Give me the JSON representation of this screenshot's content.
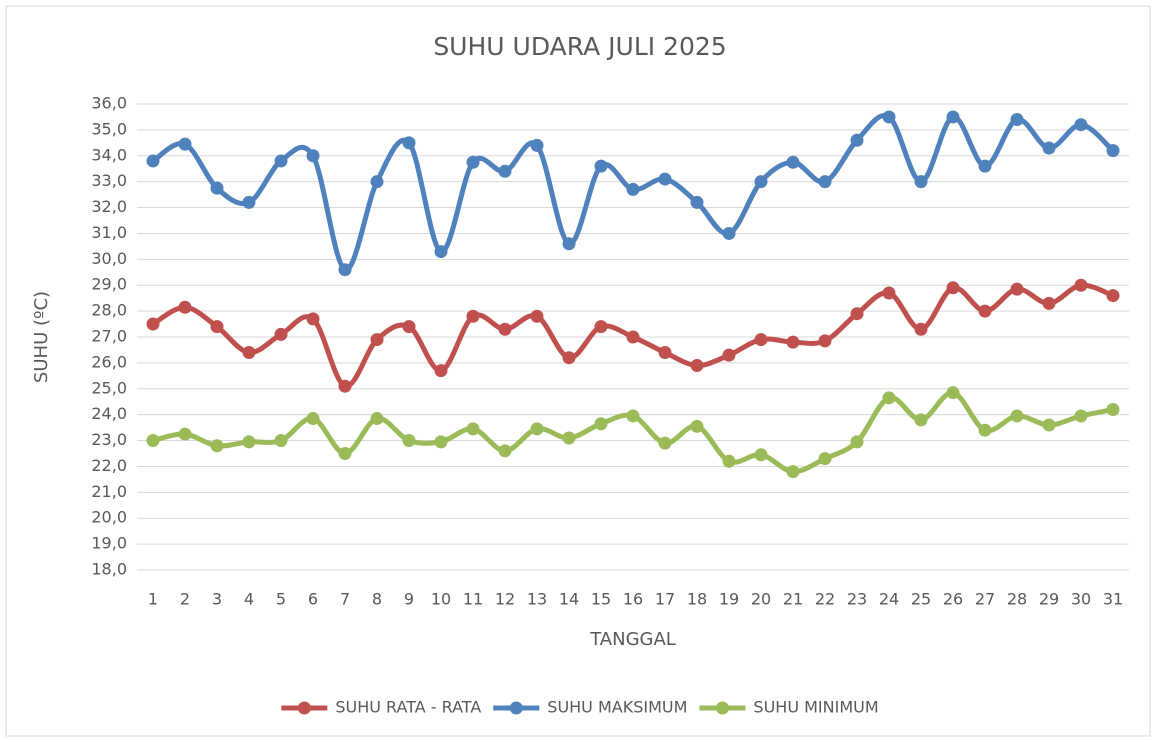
{
  "chart_data": {
    "type": "line",
    "title": "SUHU UDARA JULI 2025",
    "x_label": "TANGGAL",
    "y_label": "SUHU (ºC)",
    "categories": [
      "1",
      "2",
      "3",
      "4",
      "5",
      "6",
      "7",
      "8",
      "9",
      "10",
      "11",
      "12",
      "13",
      "14",
      "15",
      "16",
      "17",
      "18",
      "19",
      "20",
      "21",
      "22",
      "23",
      "24",
      "25",
      "26",
      "27",
      "28",
      "29",
      "30",
      "31"
    ],
    "series": [
      {
        "name": "SUHU RATA - RATA",
        "color": "#c0504d",
        "values": [
          27.5,
          28.15,
          27.4,
          26.4,
          27.1,
          27.7,
          25.1,
          26.9,
          27.4,
          25.7,
          27.8,
          27.3,
          27.8,
          26.2,
          27.4,
          27.0,
          26.4,
          25.9,
          26.3,
          26.9,
          26.8,
          26.85,
          27.9,
          28.7,
          27.3,
          28.9,
          28.0,
          28.85,
          28.3,
          29.0,
          28.6
        ]
      },
      {
        "name": "SUHU MAKSIMUM",
        "color": "#4f81bd",
        "values": [
          33.8,
          34.45,
          32.75,
          32.2,
          33.8,
          34.0,
          29.6,
          33.0,
          34.5,
          30.3,
          33.75,
          33.4,
          34.4,
          30.6,
          33.6,
          32.7,
          33.1,
          32.2,
          31.0,
          33.0,
          33.75,
          33.0,
          34.6,
          35.5,
          33.0,
          35.5,
          33.6,
          35.4,
          34.3,
          35.2,
          34.2
        ]
      },
      {
        "name": "SUHU MINIMUM",
        "color": "#9bbb59",
        "values": [
          23.0,
          23.25,
          22.8,
          22.95,
          23.0,
          23.85,
          22.5,
          23.85,
          23.0,
          22.95,
          23.45,
          22.6,
          23.45,
          23.1,
          23.65,
          23.95,
          22.9,
          23.55,
          22.2,
          22.45,
          21.8,
          22.3,
          22.95,
          24.65,
          23.8,
          24.85,
          23.4,
          23.95,
          23.6,
          23.95,
          24.2
        ]
      }
    ],
    "ylim": [
      18,
      36
    ],
    "yticks": [
      {
        "value": 18,
        "label": "18,0"
      },
      {
        "value": 19,
        "label": "19,0"
      },
      {
        "value": 20,
        "label": "20,0"
      },
      {
        "value": 21,
        "label": "21,0"
      },
      {
        "value": 22,
        "label": "22,0"
      },
      {
        "value": 23,
        "label": "23,0"
      },
      {
        "value": 24,
        "label": "24,0"
      },
      {
        "value": 25,
        "label": "25,0"
      },
      {
        "value": 26,
        "label": "26,0"
      },
      {
        "value": 27,
        "label": "27,0"
      },
      {
        "value": 28,
        "label": "28,0"
      },
      {
        "value": 29,
        "label": "29,0"
      },
      {
        "value": 30,
        "label": "30,0"
      },
      {
        "value": 31,
        "label": "31,0"
      },
      {
        "value": 32,
        "label": "32,0"
      },
      {
        "value": 33,
        "label": "33,0"
      },
      {
        "value": 34,
        "label": "34,0"
      },
      {
        "value": 35,
        "label": "35,0"
      },
      {
        "value": 36,
        "label": "36,0"
      }
    ],
    "grid": true,
    "smooth": true,
    "legend": "bottom"
  }
}
